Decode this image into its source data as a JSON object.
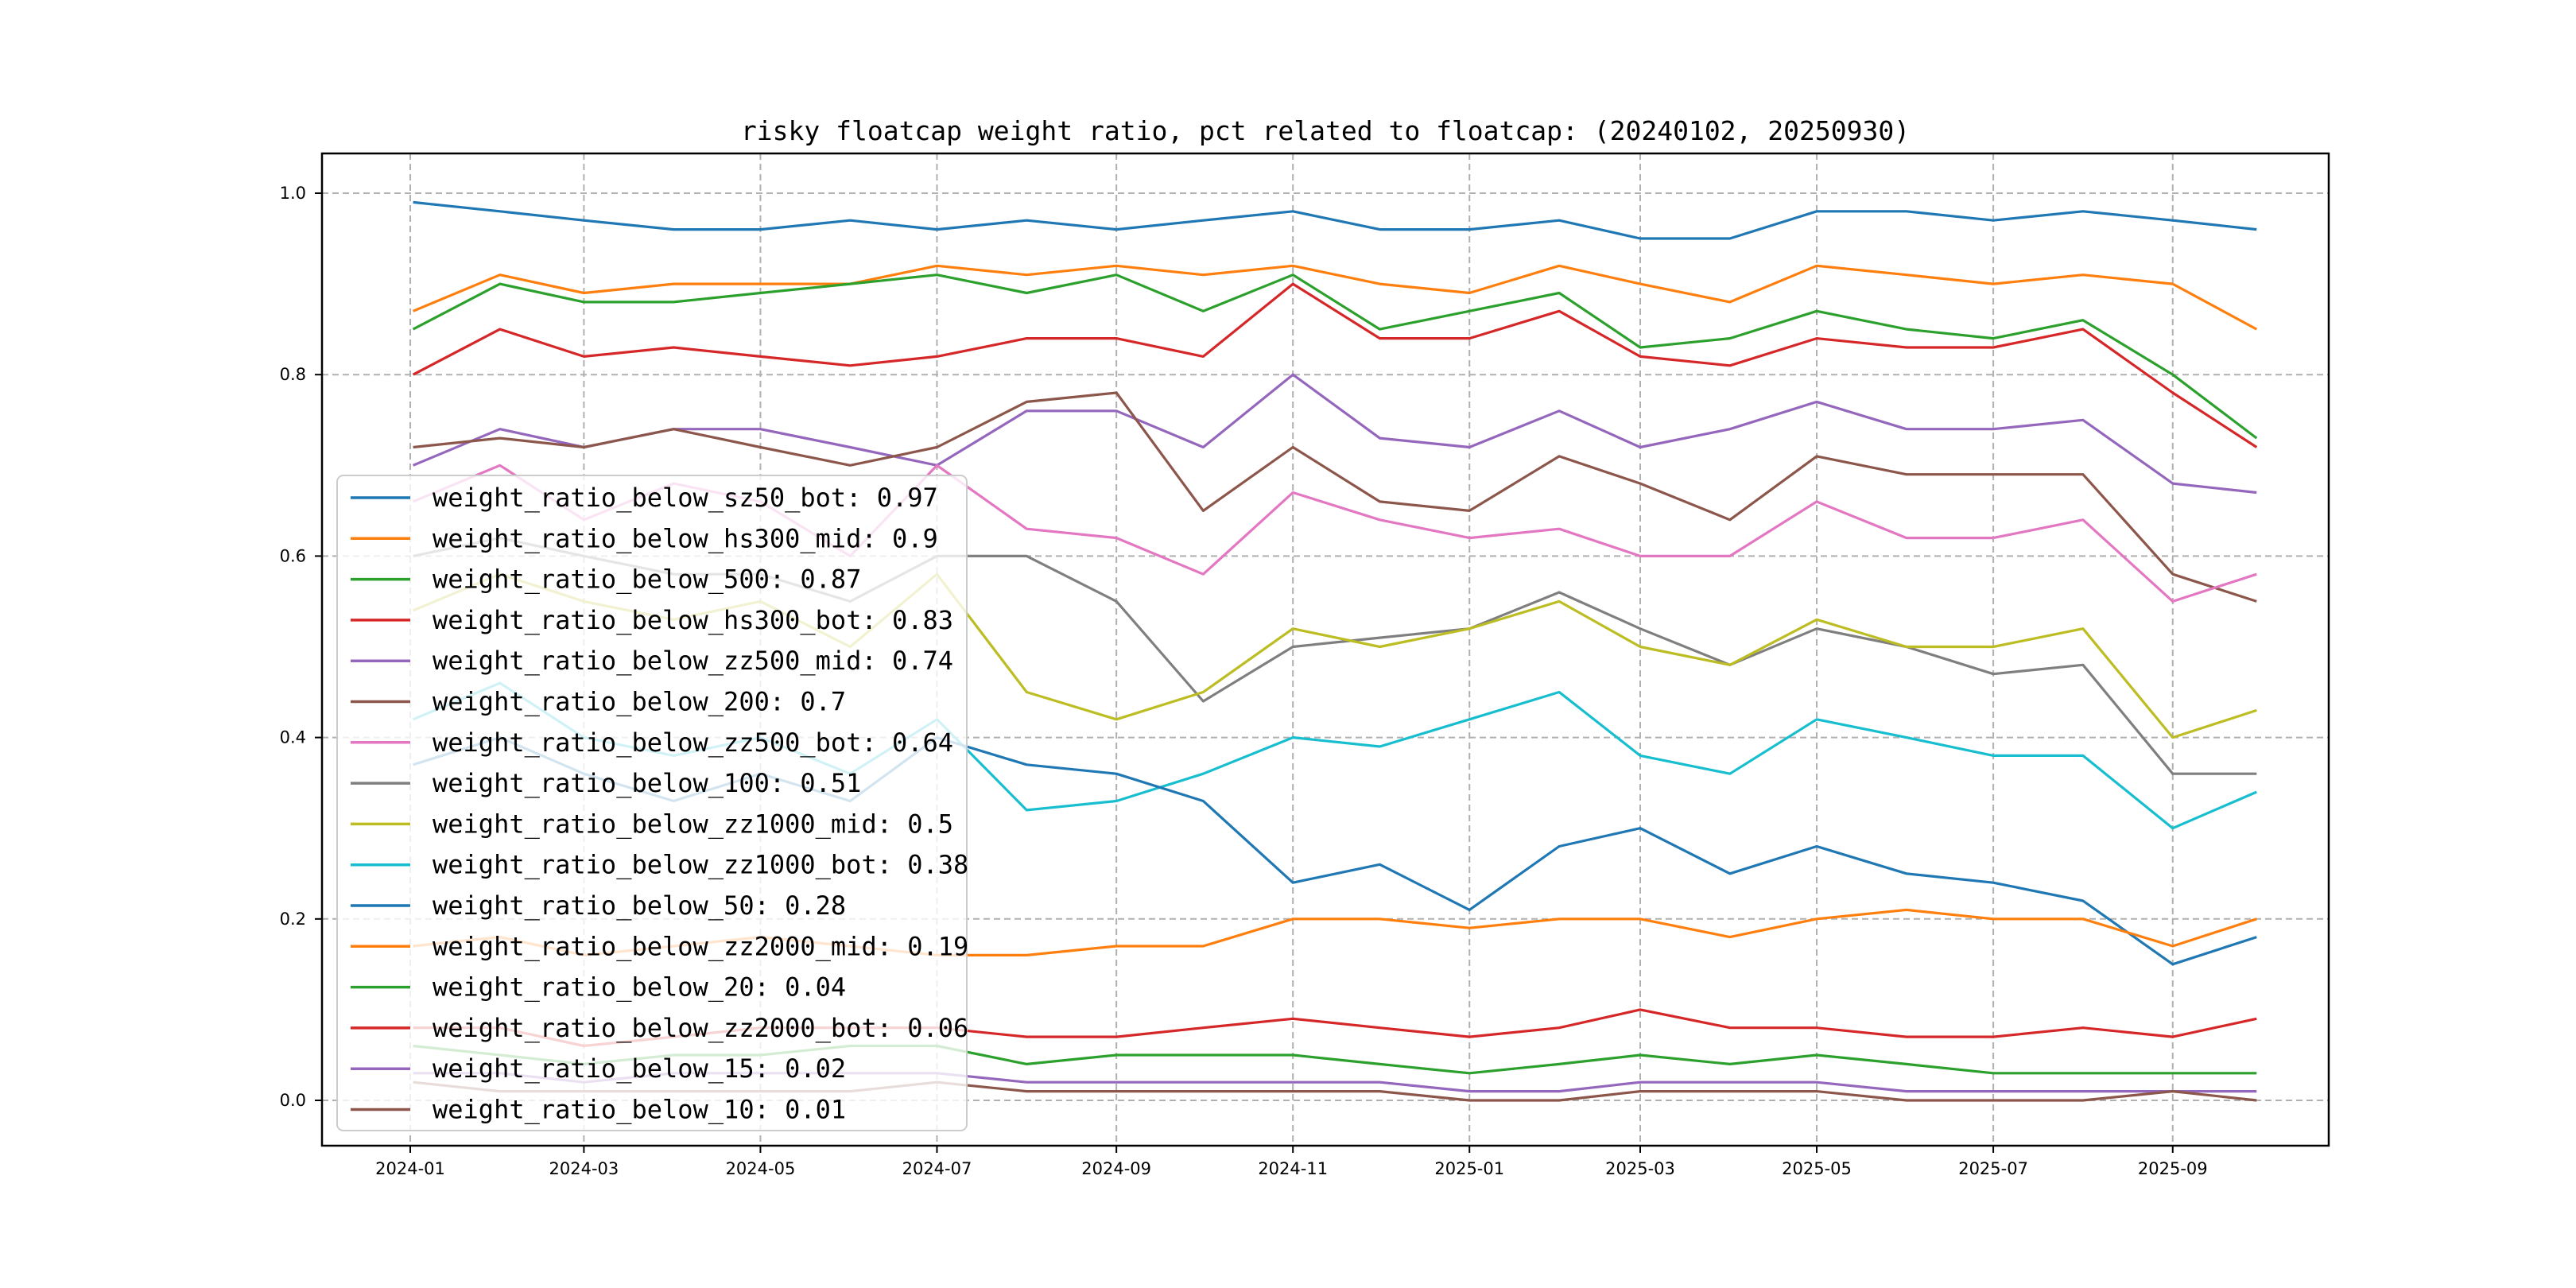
{
  "chart_data": {
    "type": "line",
    "title": "risky floatcap weight ratio, pct related to floatcap: (20240102, 20250930)",
    "xlabel": "",
    "ylabel": "",
    "ylim": [
      -0.045,
      1.045
    ],
    "yticks": [
      "0.0",
      "0.2",
      "0.4",
      "0.6",
      "0.8",
      "1.0"
    ],
    "xticks": [
      "2024-01",
      "2024-03",
      "2024-05",
      "2024-07",
      "2024-09",
      "2024-11",
      "2025-01",
      "2025-03",
      "2025-05",
      "2025-07",
      "2025-09"
    ],
    "grid": true,
    "legend_position": "center-left",
    "x": [
      "2024-01-02",
      "2024-02-01",
      "2024-03-01",
      "2024-04-01",
      "2024-05-01",
      "2024-06-01",
      "2024-07-01",
      "2024-08-01",
      "2024-09-01",
      "2024-10-01",
      "2024-11-01",
      "2024-12-01",
      "2025-01-01",
      "2025-02-01",
      "2025-03-01",
      "2025-04-01",
      "2025-05-01",
      "2025-06-01",
      "2025-07-01",
      "2025-08-01",
      "2025-09-01",
      "2025-09-30"
    ],
    "series": [
      {
        "label": "weight_ratio_below_sz50_bot: 0.97",
        "color": "#1f77b4",
        "values": [
          0.99,
          0.98,
          0.97,
          0.96,
          0.96,
          0.97,
          0.96,
          0.97,
          0.96,
          0.97,
          0.98,
          0.96,
          0.96,
          0.97,
          0.95,
          0.95,
          0.98,
          0.98,
          0.97,
          0.98,
          0.97,
          0.96
        ]
      },
      {
        "label": "weight_ratio_below_hs300_mid: 0.9",
        "color": "#ff7f0e",
        "values": [
          0.87,
          0.91,
          0.89,
          0.9,
          0.9,
          0.9,
          0.92,
          0.91,
          0.92,
          0.91,
          0.92,
          0.9,
          0.89,
          0.92,
          0.9,
          0.88,
          0.92,
          0.91,
          0.9,
          0.91,
          0.9,
          0.85
        ]
      },
      {
        "label": "weight_ratio_below_500: 0.87",
        "color": "#2ca02c",
        "values": [
          0.85,
          0.9,
          0.88,
          0.88,
          0.89,
          0.9,
          0.91,
          0.89,
          0.91,
          0.87,
          0.91,
          0.85,
          0.87,
          0.89,
          0.83,
          0.84,
          0.87,
          0.85,
          0.84,
          0.86,
          0.8,
          0.73
        ]
      },
      {
        "label": "weight_ratio_below_hs300_bot: 0.83",
        "color": "#d62728",
        "values": [
          0.8,
          0.85,
          0.82,
          0.83,
          0.82,
          0.81,
          0.82,
          0.84,
          0.84,
          0.82,
          0.9,
          0.84,
          0.84,
          0.87,
          0.82,
          0.81,
          0.84,
          0.83,
          0.83,
          0.85,
          0.78,
          0.72
        ]
      },
      {
        "label": "weight_ratio_below_zz500_mid: 0.74",
        "color": "#9467bd",
        "values": [
          0.7,
          0.74,
          0.72,
          0.74,
          0.74,
          0.72,
          0.7,
          0.76,
          0.76,
          0.72,
          0.8,
          0.73,
          0.72,
          0.76,
          0.72,
          0.74,
          0.77,
          0.74,
          0.74,
          0.75,
          0.68,
          0.67
        ]
      },
      {
        "label": "weight_ratio_below_200: 0.7",
        "color": "#8c564b",
        "values": [
          0.72,
          0.73,
          0.72,
          0.74,
          0.72,
          0.7,
          0.72,
          0.77,
          0.78,
          0.65,
          0.72,
          0.66,
          0.65,
          0.71,
          0.68,
          0.64,
          0.71,
          0.69,
          0.69,
          0.69,
          0.58,
          0.55
        ]
      },
      {
        "label": "weight_ratio_below_zz500_bot: 0.64",
        "color": "#e377c2",
        "values": [
          0.66,
          0.7,
          0.64,
          0.68,
          0.66,
          0.6,
          0.7,
          0.63,
          0.62,
          0.58,
          0.67,
          0.64,
          0.62,
          0.63,
          0.6,
          0.6,
          0.66,
          0.62,
          0.62,
          0.64,
          0.55,
          0.58
        ]
      },
      {
        "label": "weight_ratio_below_100: 0.51",
        "color": "#7f7f7f",
        "values": [
          0.6,
          0.62,
          0.6,
          0.58,
          0.58,
          0.55,
          0.6,
          0.6,
          0.55,
          0.44,
          0.5,
          0.51,
          0.52,
          0.56,
          0.52,
          0.48,
          0.52,
          0.5,
          0.47,
          0.48,
          0.36,
          0.36
        ]
      },
      {
        "label": "weight_ratio_below_zz1000_mid: 0.5",
        "color": "#bcbd22",
        "values": [
          0.54,
          0.58,
          0.55,
          0.53,
          0.55,
          0.5,
          0.58,
          0.45,
          0.42,
          0.45,
          0.52,
          0.5,
          0.52,
          0.55,
          0.5,
          0.48,
          0.53,
          0.5,
          0.5,
          0.52,
          0.4,
          0.43
        ]
      },
      {
        "label": "weight_ratio_below_zz1000_bot: 0.38",
        "color": "#17becf",
        "values": [
          0.42,
          0.46,
          0.4,
          0.38,
          0.4,
          0.36,
          0.42,
          0.32,
          0.33,
          0.36,
          0.4,
          0.39,
          0.42,
          0.45,
          0.38,
          0.36,
          0.42,
          0.4,
          0.38,
          0.38,
          0.3,
          0.34
        ]
      },
      {
        "label": "weight_ratio_below_50: 0.28",
        "color": "#1f77b4",
        "values": [
          0.37,
          0.4,
          0.36,
          0.33,
          0.36,
          0.33,
          0.4,
          0.37,
          0.36,
          0.33,
          0.24,
          0.26,
          0.21,
          0.28,
          0.3,
          0.25,
          0.28,
          0.25,
          0.24,
          0.22,
          0.15,
          0.18
        ]
      },
      {
        "label": "weight_ratio_below_zz2000_mid: 0.19",
        "color": "#ff7f0e",
        "values": [
          0.17,
          0.18,
          0.16,
          0.17,
          0.18,
          0.17,
          0.16,
          0.16,
          0.17,
          0.17,
          0.2,
          0.2,
          0.19,
          0.2,
          0.2,
          0.18,
          0.2,
          0.21,
          0.2,
          0.2,
          0.17,
          0.2
        ]
      },
      {
        "label": "weight_ratio_below_20: 0.04",
        "color": "#2ca02c",
        "values": [
          0.06,
          0.05,
          0.04,
          0.05,
          0.05,
          0.06,
          0.06,
          0.04,
          0.05,
          0.05,
          0.05,
          0.04,
          0.03,
          0.04,
          0.05,
          0.04,
          0.05,
          0.04,
          0.03,
          0.03,
          0.03,
          0.03
        ]
      },
      {
        "label": "weight_ratio_below_zz2000_bot: 0.06",
        "color": "#d62728",
        "values": [
          0.08,
          0.08,
          0.06,
          0.07,
          0.08,
          0.08,
          0.08,
          0.07,
          0.07,
          0.08,
          0.09,
          0.08,
          0.07,
          0.08,
          0.1,
          0.08,
          0.08,
          0.07,
          0.07,
          0.08,
          0.07,
          0.09
        ]
      },
      {
        "label": "weight_ratio_below_15: 0.02",
        "color": "#9467bd",
        "values": [
          0.03,
          0.03,
          0.02,
          0.03,
          0.03,
          0.03,
          0.03,
          0.02,
          0.02,
          0.02,
          0.02,
          0.02,
          0.01,
          0.01,
          0.02,
          0.02,
          0.02,
          0.01,
          0.01,
          0.01,
          0.01,
          0.01
        ]
      },
      {
        "label": "weight_ratio_below_10: 0.01",
        "color": "#8c564b",
        "values": [
          0.02,
          0.01,
          0.01,
          0.01,
          0.01,
          0.01,
          0.02,
          0.01,
          0.01,
          0.01,
          0.01,
          0.01,
          0.0,
          0.0,
          0.01,
          0.01,
          0.01,
          0.0,
          0.0,
          0.0,
          0.01,
          0.0
        ]
      }
    ]
  }
}
